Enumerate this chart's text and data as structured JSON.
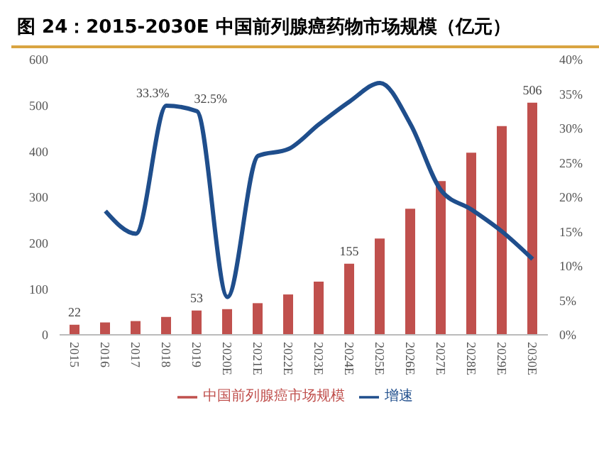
{
  "chart_data": {
    "type": "bar",
    "title": "图 24：2015-2030E 中国前列腺癌药物市场规模（亿元）",
    "categories": [
      "2015",
      "2016",
      "2017",
      "2018",
      "2019",
      "2020E",
      "2021E",
      "2022E",
      "2023E",
      "2024E",
      "2025E",
      "2026E",
      "2027E",
      "2028E",
      "2029E",
      "2030E"
    ],
    "series": [
      {
        "name": "中国前列腺癌市场规模",
        "color": "#c0504d",
        "values": [
          22,
          27,
          30,
          39,
          53,
          56,
          69,
          88,
          116,
          155,
          210,
          275,
          335,
          397,
          455,
          506
        ],
        "value_labels": [
          "22",
          null,
          null,
          null,
          "53",
          null,
          null,
          null,
          null,
          "155",
          null,
          null,
          null,
          null,
          null,
          "506"
        ]
      },
      {
        "name": "增速",
        "type": "line",
        "axis": "y2",
        "color": "#1f4e8c",
        "values": [
          null,
          18,
          14.7,
          33.3,
          32.5,
          5.5,
          26,
          27,
          30.6,
          33.9,
          36.6,
          30.6,
          21,
          18.2,
          15,
          11
        ],
        "value_labels": [
          null,
          null,
          null,
          "33.3%",
          "32.5%",
          null,
          null,
          null,
          null,
          null,
          null,
          null,
          null,
          null,
          null,
          null
        ]
      }
    ],
    "ylim": [
      0,
      600
    ],
    "yticks": [
      0,
      100,
      200,
      300,
      400,
      500,
      600
    ],
    "y2lim": [
      0,
      40
    ],
    "y2ticks": [
      {
        "value": 0,
        "label": "0%"
      },
      {
        "value": 5,
        "label": "5%"
      },
      {
        "value": 10,
        "label": "10%"
      },
      {
        "value": 15,
        "label": "15%"
      },
      {
        "value": 20,
        "label": "20%"
      },
      {
        "value": 25,
        "label": "25%"
      },
      {
        "value": 30,
        "label": "30%"
      },
      {
        "value": 35,
        "label": "35%"
      },
      {
        "value": 40,
        "label": "40%"
      }
    ],
    "grid": false,
    "legend": "bottom",
    "marker": "none",
    "line_style": "solid"
  }
}
